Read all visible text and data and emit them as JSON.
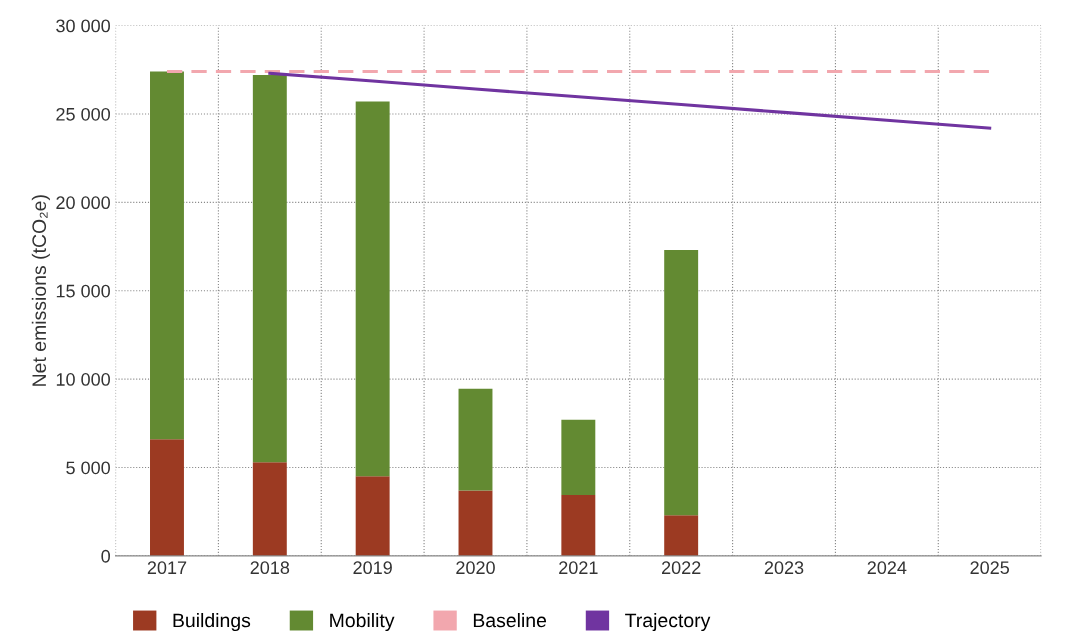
{
  "chart_data": {
    "type": "bar",
    "stacked": true,
    "ylabel": "Net emissions (tCO₂e)",
    "categories": [
      "2017",
      "2018",
      "2019",
      "2020",
      "2021",
      "2022",
      "2023",
      "2024",
      "2025"
    ],
    "series": [
      {
        "name": "Buildings",
        "color": "#9c3a22",
        "values": [
          6600,
          5300,
          4500,
          3700,
          3450,
          2300,
          0,
          0,
          0
        ]
      },
      {
        "name": "Mobility",
        "color": "#638a32",
        "values": [
          20800,
          21900,
          21200,
          5750,
          4250,
          15000,
          0,
          0,
          0
        ]
      },
      {
        "name": "Baseline",
        "type": "line",
        "line_style": "dashed",
        "color": "#f2a7ae",
        "values": [
          27400,
          27400,
          27400,
          27400,
          27400,
          27400,
          27400,
          27400,
          27400
        ]
      },
      {
        "name": "Trajectory",
        "type": "line",
        "line_style": "solid",
        "color": "#7034a0",
        "values": [
          null,
          27300,
          26860,
          26410,
          25970,
          25530,
          25090,
          24640,
          24200
        ]
      }
    ],
    "ylim": [
      0,
      30000
    ],
    "yticks": [
      {
        "value": 0,
        "label": "0"
      },
      {
        "value": 5000,
        "label": "5 000"
      },
      {
        "value": 10000,
        "label": "10 000"
      },
      {
        "value": 15000,
        "label": "15 000"
      },
      {
        "value": 20000,
        "label": "20 000"
      },
      {
        "value": 25000,
        "label": "25 000"
      },
      {
        "value": 30000,
        "label": "30 000"
      }
    ],
    "grid": true,
    "legend": "bottom left"
  }
}
